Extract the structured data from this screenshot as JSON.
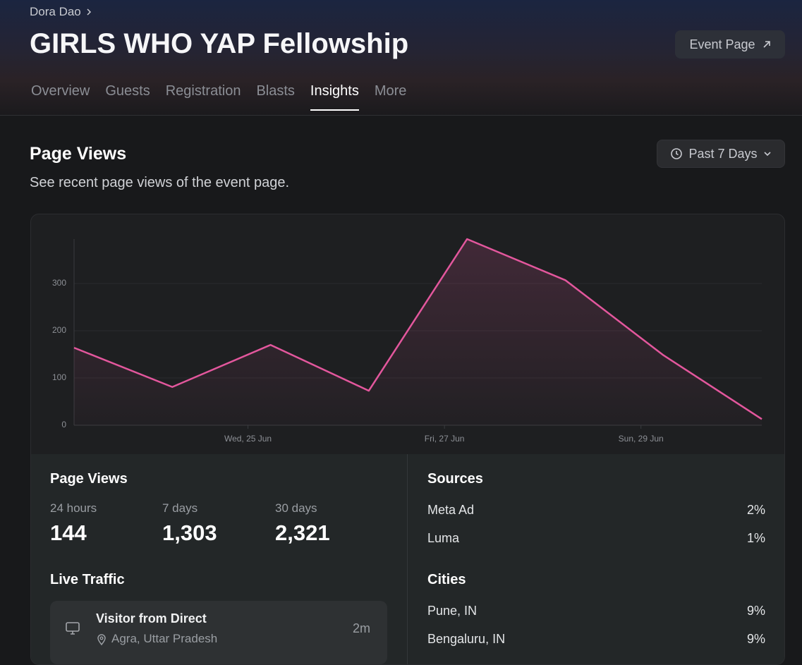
{
  "breadcrumb": "Dora Dao",
  "title": "GIRLS WHO YAP Fellowship",
  "event_page_button": "Event Page",
  "tabs": [
    "Overview",
    "Guests",
    "Registration",
    "Blasts",
    "Insights",
    "More"
  ],
  "section": {
    "title": "Page Views",
    "subtitle": "See recent page views of the event page.",
    "range": "Past 7 Days"
  },
  "chart_data": {
    "type": "line",
    "color": "#e3579d",
    "x": [
      23.23,
      24.23,
      25.23,
      26.23,
      27.23,
      28.23,
      29.23,
      30.23
    ],
    "values": [
      164,
      81,
      170,
      73,
      394,
      307,
      148,
      13
    ],
    "xlim": [
      23.23,
      30.23
    ],
    "xticks": [
      {
        "value": 25,
        "label": "Wed, 25 Jun"
      },
      {
        "value": 27,
        "label": "Fri, 27 Jun"
      },
      {
        "value": 29,
        "label": "Sun, 29 Jun"
      }
    ],
    "ylim": [
      0,
      394
    ],
    "yticks": [
      0,
      100,
      200,
      300
    ],
    "grid": true
  },
  "stats": {
    "title": "Page Views",
    "items": [
      {
        "label": "24 hours",
        "value": "144"
      },
      {
        "label": "7 days",
        "value": "1,303"
      },
      {
        "label": "30 days",
        "value": "2,321"
      }
    ]
  },
  "live_traffic": {
    "title": "Live Traffic",
    "visitors": [
      {
        "title": "Visitor from Direct",
        "location": "Agra, Uttar Pradesh",
        "time": "2m"
      }
    ]
  },
  "sources": {
    "title": "Sources",
    "rows": [
      {
        "name": "Meta Ad",
        "share": "2%"
      },
      {
        "name": "Luma",
        "share": "1%"
      }
    ]
  },
  "cities": {
    "title": "Cities",
    "rows": [
      {
        "name": "Pune, IN",
        "share": "9%"
      },
      {
        "name": "Bengaluru, IN",
        "share": "9%"
      }
    ]
  }
}
